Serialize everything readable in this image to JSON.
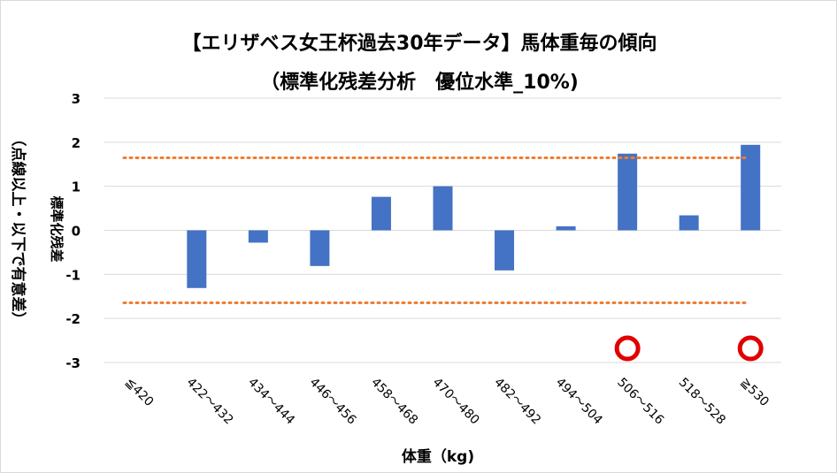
{
  "chart_data": {
    "type": "bar",
    "title": "【エリザベス女王杯過去30年データ】馬体重毎の傾向",
    "subtitle": "（標準化残差分析　優位水準_10%)",
    "xlabel": "体重（kg)",
    "ylabel": "標準化残差",
    "ylabel2": "（点線以上・以下で有意差）",
    "categories": [
      "≦420",
      "422～432",
      "434～444",
      "446～456",
      "458～468",
      "470～480",
      "482～492",
      "494～504",
      "506～516",
      "518～528",
      "≧530"
    ],
    "values": [
      0,
      -1.31,
      -0.28,
      -0.81,
      0.76,
      1.0,
      -0.91,
      0.09,
      1.74,
      0.34,
      1.94
    ],
    "ylim": [
      -3,
      3
    ],
    "yticks": [
      3,
      2,
      1,
      0,
      -1,
      -2,
      -3
    ],
    "threshold_lines": [
      1.645,
      -1.645
    ],
    "significant_markers": [
      "506～516",
      "≧530"
    ],
    "grid": true,
    "colors": {
      "bar": "#4472C4",
      "threshold": "#ED7D31",
      "marker": "#E00000",
      "grid": "#d9d9d9"
    }
  }
}
